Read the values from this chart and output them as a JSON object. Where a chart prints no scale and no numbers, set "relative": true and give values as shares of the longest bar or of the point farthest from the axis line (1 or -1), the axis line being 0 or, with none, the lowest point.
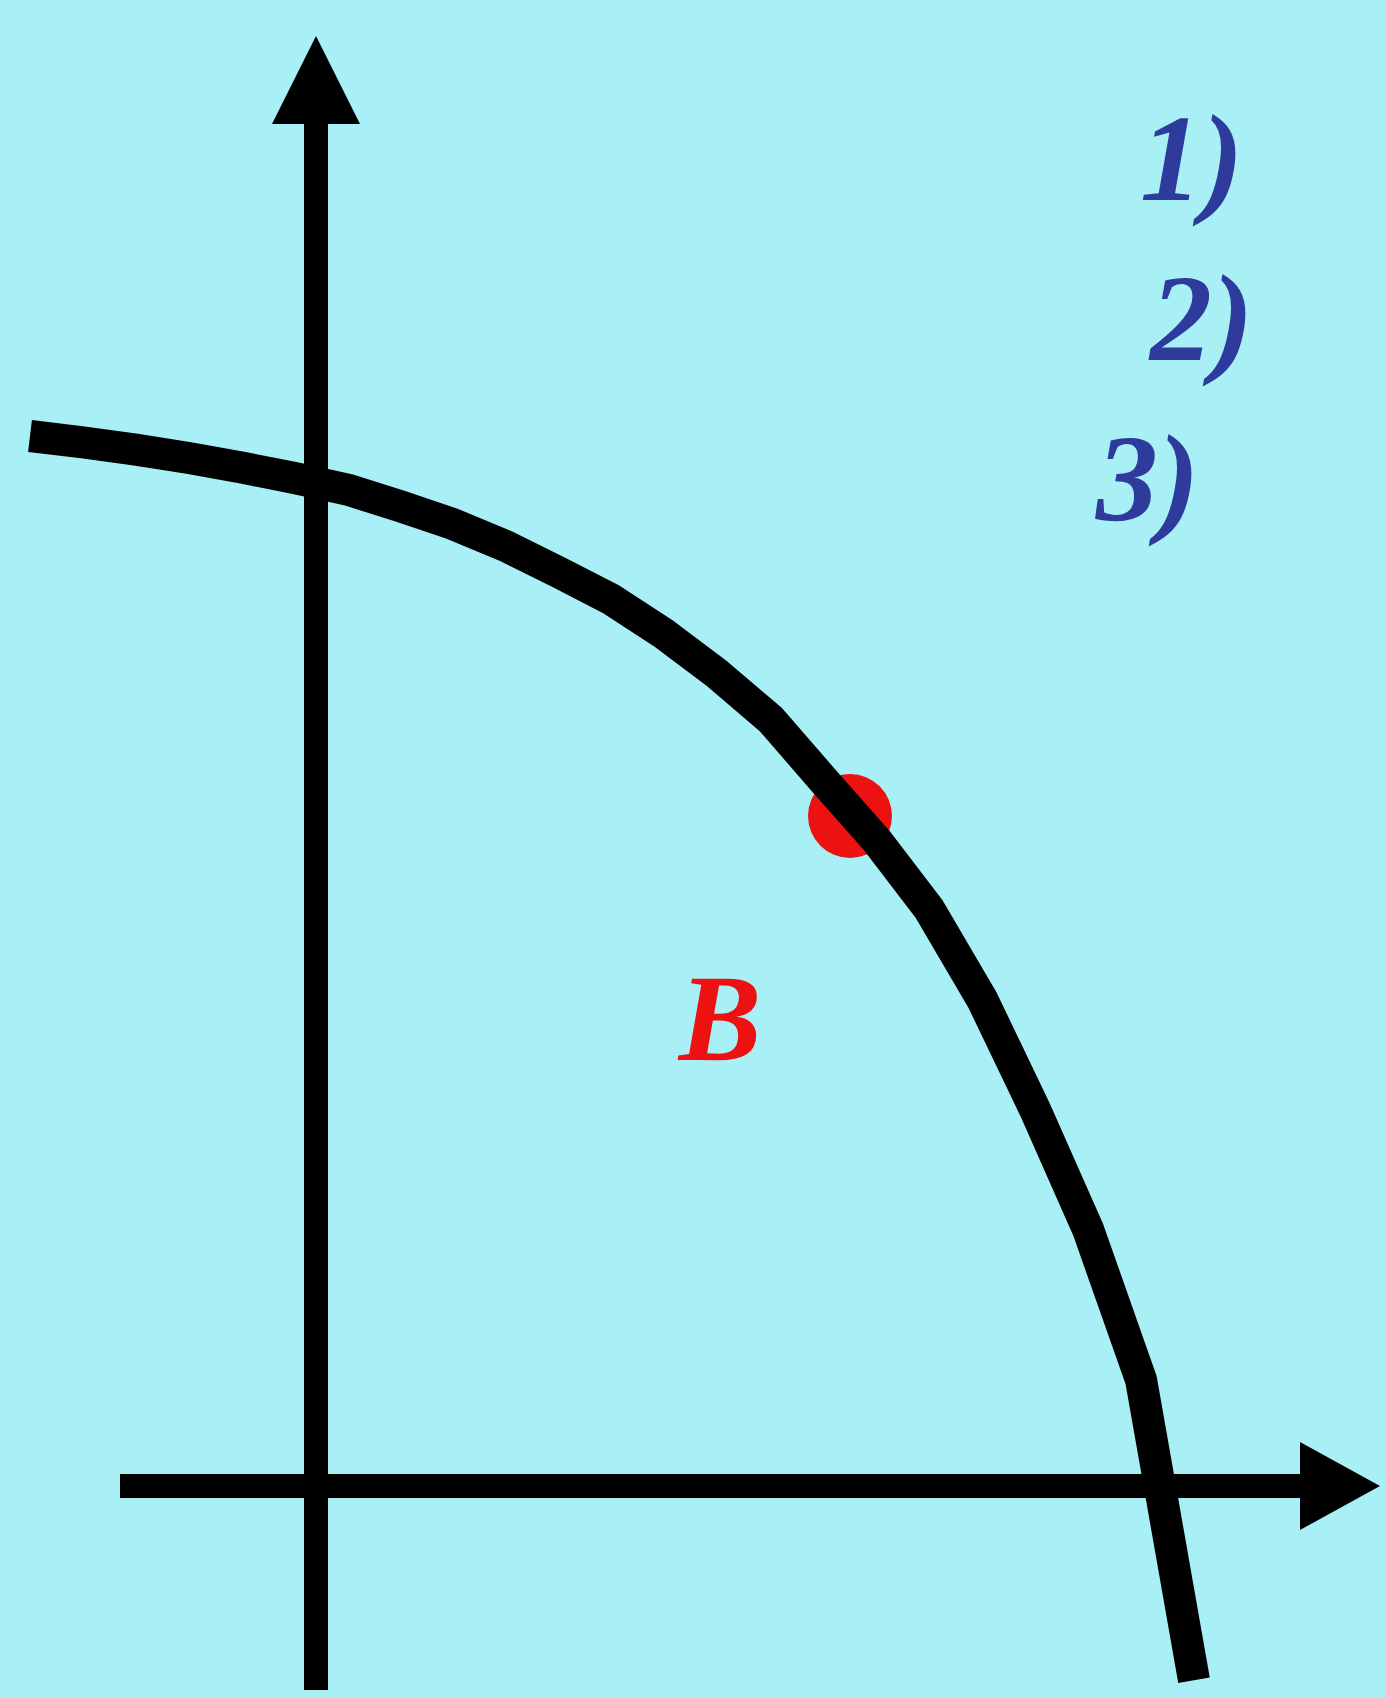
{
  "chart_data": {
    "type": "line",
    "relative": true,
    "categories": [
      null,
      null,
      null,
      null,
      null,
      null,
      null,
      null,
      null,
      null,
      null,
      null,
      null,
      null,
      null,
      null,
      null,
      null,
      null,
      null,
      null,
      null,
      null
    ],
    "series": [
      {
        "color": "#000000",
        "values": [
          1.0,
          0.994,
          0.987,
          0.979,
          0.97,
          0.96,
          0.949,
          0.933,
          0.916,
          0.895,
          0.87,
          0.844,
          0.811,
          0.773,
          0.73,
          0.672,
          0.615,
          0.549,
          0.463,
          0.358,
          0.244,
          0.101,
          -0.185
        ]
      }
    ],
    "annotations": [
      "1)",
      "2)",
      "3)",
      "B"
    ]
  }
}
